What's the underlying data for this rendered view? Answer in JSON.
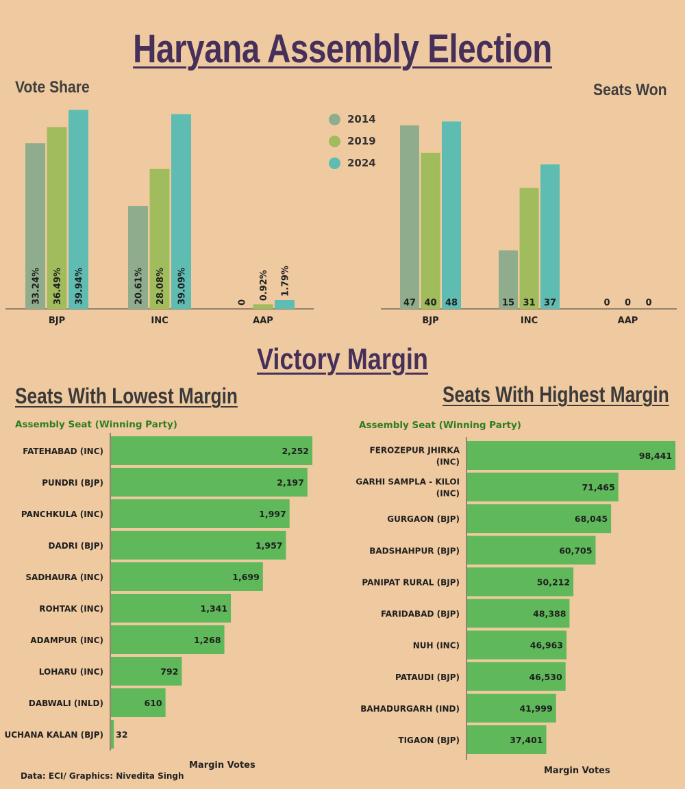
{
  "title": "Haryana Assembly Election",
  "subtitle": "Victory Margin",
  "legend": [
    {
      "label": "2014",
      "color": "#8fad8c"
    },
    {
      "label": "2019",
      "color": "#a0bc5c"
    },
    {
      "label": "2024",
      "color": "#5fbcb3"
    }
  ],
  "chart_data": [
    {
      "type": "bar",
      "title": "Vote Share",
      "categories": [
        "BJP",
        "INC",
        "AAP"
      ],
      "series": [
        {
          "name": "2014",
          "values": [
            33.24,
            20.61,
            0
          ],
          "labels": [
            "33.24%",
            "20.61%",
            "0"
          ]
        },
        {
          "name": "2019",
          "values": [
            36.49,
            28.08,
            0.92
          ],
          "labels": [
            "36.49%",
            "28.08%",
            "0.92%"
          ]
        },
        {
          "name": "2024",
          "values": [
            39.94,
            39.09,
            1.79
          ],
          "labels": [
            "39.94%",
            "39.09%",
            "1.79%"
          ]
        }
      ],
      "ylim": [
        0,
        40
      ]
    },
    {
      "type": "bar",
      "title": "Seats Won",
      "categories": [
        "BJP",
        "INC",
        "AAP"
      ],
      "series": [
        {
          "name": "2014",
          "values": [
            47,
            15,
            0
          ]
        },
        {
          "name": "2019",
          "values": [
            40,
            31,
            0
          ]
        },
        {
          "name": "2024",
          "values": [
            48,
            37,
            0
          ]
        }
      ],
      "ylim": [
        0,
        50
      ]
    },
    {
      "type": "bar",
      "orientation": "horizontal",
      "title": "Seats With Lowest Margin",
      "category_label": "Assembly Seat (Winning Party)",
      "xlabel": "Margin Votes",
      "categories": [
        "FATEHABAD (INC)",
        "PUNDRI (BJP)",
        "PANCHKULA (INC)",
        "DADRI (BJP)",
        "SADHAURA (INC)",
        "ROHTAK (INC)",
        "ADAMPUR (INC)",
        "LOHARU (INC)",
        "DABWALI (INLD)",
        "UCHANA KALAN (BJP)"
      ],
      "values": [
        2252,
        2197,
        1997,
        1957,
        1699,
        1341,
        1268,
        792,
        610,
        32
      ],
      "labels": [
        "2,252",
        "2,197",
        "1,997",
        "1,957",
        "1,699",
        "1,341",
        "1,268",
        "792",
        "610",
        "32"
      ],
      "color": "#5fb85a"
    },
    {
      "type": "bar",
      "orientation": "horizontal",
      "title": "Seats With Highest Margin",
      "category_label": "Assembly Seat (Winning Party)",
      "xlabel": "Margin Votes",
      "categories": [
        [
          "FEROZEPUR JHIRKA",
          "(INC)"
        ],
        [
          "GARHI SAMPLA - KILOI",
          "(INC)"
        ],
        [
          "GURGAON (BJP)"
        ],
        [
          "BADSHAHPUR (BJP)"
        ],
        [
          "PANIPAT RURAL (BJP)"
        ],
        [
          "FARIDABAD (BJP)"
        ],
        [
          "NUH (INC)"
        ],
        [
          "PATAUDI (BJP)"
        ],
        [
          "BAHADURGARH (IND)"
        ],
        [
          "TIGAON (BJP)"
        ]
      ],
      "values": [
        98441,
        71465,
        68045,
        60705,
        50212,
        48388,
        46963,
        46530,
        41999,
        37401
      ],
      "labels": [
        "98,441",
        "71,465",
        "68,045",
        "60,705",
        "50,212",
        "48,388",
        "46,963",
        "46,530",
        "41,999",
        "37,401"
      ],
      "color": "#5fb85a"
    }
  ],
  "credit": "Data: ECI/ Graphics: Nivedita Singh"
}
